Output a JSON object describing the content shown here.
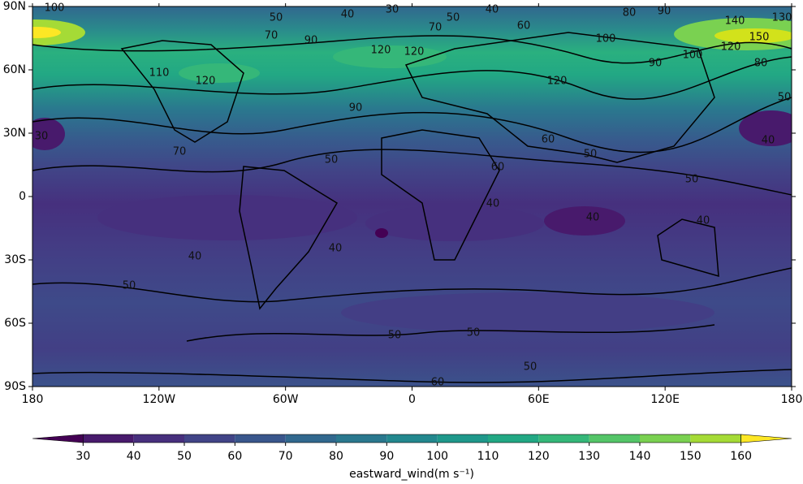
{
  "chart_data": {
    "type": "contour_map",
    "xticks": [
      {
        "value": -180,
        "label": "180"
      },
      {
        "value": -120,
        "label": "120W"
      },
      {
        "value": -60,
        "label": "60W"
      },
      {
        "value": 0,
        "label": "0"
      },
      {
        "value": 60,
        "label": "60E"
      },
      {
        "value": 120,
        "label": "120E"
      },
      {
        "value": 180,
        "label": "180"
      }
    ],
    "xlim": [
      -180,
      180
    ],
    "yticks": [
      {
        "value": 90,
        "label": "90N"
      },
      {
        "value": 60,
        "label": "60N"
      },
      {
        "value": 30,
        "label": "30N"
      },
      {
        "value": 0,
        "label": "0"
      },
      {
        "value": -30,
        "label": "30S"
      },
      {
        "value": -60,
        "label": "60S"
      },
      {
        "value": -90,
        "label": "90S"
      }
    ],
    "ylim": [
      -90,
      90
    ],
    "contour_labels": [
      100,
      50,
      40,
      30,
      50,
      40,
      60,
      80,
      90,
      140,
      150,
      130,
      120,
      100,
      90,
      80,
      50,
      40,
      120,
      100,
      70,
      90,
      70,
      120,
      120,
      110,
      120,
      90,
      70,
      50,
      60,
      60,
      50,
      50,
      40,
      40,
      40,
      40,
      40,
      50,
      50,
      50,
      50,
      60,
      30
    ],
    "colorbar": {
      "label": "eastward_wind(m s⁻¹)",
      "ticks": [
        30,
        40,
        50,
        60,
        70,
        80,
        90,
        100,
        110,
        120,
        130,
        140,
        150,
        160
      ],
      "colors": [
        "#440154",
        "#481a6c",
        "#472f7d",
        "#414487",
        "#39568c",
        "#31688e",
        "#2a788e",
        "#23888e",
        "#1f988b",
        "#22a884",
        "#35b779",
        "#54c568",
        "#7ad151",
        "#a5db36",
        "#fde725"
      ]
    }
  }
}
